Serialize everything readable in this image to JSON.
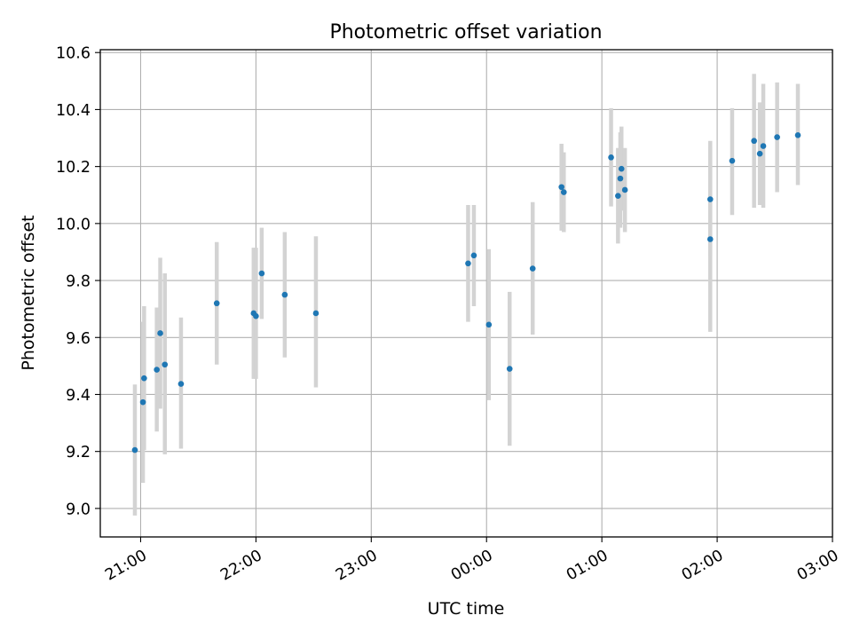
{
  "chart_data": {
    "type": "scatter",
    "title": "Photometric offset variation",
    "xlabel": "UTC time",
    "ylabel": "Photometric offset",
    "grid": true,
    "legend": "none",
    "x_unit": "hours after 21:00 UTC",
    "xlim": [
      -0.35,
      6.0
    ],
    "ylim": [
      8.9,
      10.61
    ],
    "xticks": [
      0,
      1,
      2,
      3,
      4,
      5,
      6
    ],
    "xtick_labels": [
      "21:00",
      "22:00",
      "23:00",
      "00:00",
      "01:00",
      "02:00",
      "03:00"
    ],
    "yticks": [
      9.0,
      9.2,
      9.4,
      9.6,
      9.8,
      10.0,
      10.2,
      10.4,
      10.6
    ],
    "ytick_labels": [
      "9.0",
      "9.2",
      "9.4",
      "9.6",
      "9.8",
      "10.0",
      "10.2",
      "10.4",
      "10.6"
    ],
    "marker_color": "#1f77b4",
    "errorbar_color": "#d3d3d3",
    "series": [
      {
        "points": [
          {
            "x": -0.05,
            "y": 9.205,
            "yerr_low": 8.975,
            "yerr_high": 9.435
          },
          {
            "x": 0.02,
            "y": 9.373,
            "yerr_low": 9.09,
            "yerr_high": 9.655
          },
          {
            "x": 0.03,
            "y": 9.457,
            "yerr_low": 9.205,
            "yerr_high": 9.71
          },
          {
            "x": 0.14,
            "y": 9.487,
            "yerr_low": 9.27,
            "yerr_high": 9.705
          },
          {
            "x": 0.17,
            "y": 9.615,
            "yerr_low": 9.35,
            "yerr_high": 9.88
          },
          {
            "x": 0.21,
            "y": 9.505,
            "yerr_low": 9.19,
            "yerr_high": 9.825
          },
          {
            "x": 0.35,
            "y": 9.437,
            "yerr_low": 9.21,
            "yerr_high": 9.67
          },
          {
            "x": 0.66,
            "y": 9.72,
            "yerr_low": 9.505,
            "yerr_high": 9.935
          },
          {
            "x": 0.98,
            "y": 9.685,
            "yerr_low": 9.455,
            "yerr_high": 9.915
          },
          {
            "x": 1.0,
            "y": 9.675,
            "yerr_low": 9.455,
            "yerr_high": 9.915
          },
          {
            "x": 1.05,
            "y": 9.825,
            "yerr_low": 9.665,
            "yerr_high": 9.985
          },
          {
            "x": 1.25,
            "y": 9.75,
            "yerr_low": 9.53,
            "yerr_high": 9.97
          },
          {
            "x": 1.52,
            "y": 9.685,
            "yerr_low": 9.425,
            "yerr_high": 9.955
          },
          {
            "x": 2.84,
            "y": 9.86,
            "yerr_low": 9.655,
            "yerr_high": 10.065
          },
          {
            "x": 2.89,
            "y": 9.888,
            "yerr_low": 9.71,
            "yerr_high": 10.065
          },
          {
            "x": 3.02,
            "y": 9.645,
            "yerr_low": 9.38,
            "yerr_high": 9.91
          },
          {
            "x": 3.2,
            "y": 9.49,
            "yerr_low": 9.22,
            "yerr_high": 9.76
          },
          {
            "x": 3.4,
            "y": 9.842,
            "yerr_low": 9.61,
            "yerr_high": 10.075
          },
          {
            "x": 3.65,
            "y": 10.128,
            "yerr_low": 9.975,
            "yerr_high": 10.28
          },
          {
            "x": 3.67,
            "y": 10.11,
            "yerr_low": 9.97,
            "yerr_high": 10.25
          },
          {
            "x": 4.08,
            "y": 10.232,
            "yerr_low": 10.06,
            "yerr_high": 10.405
          },
          {
            "x": 4.14,
            "y": 10.097,
            "yerr_low": 9.93,
            "yerr_high": 10.265
          },
          {
            "x": 4.16,
            "y": 10.158,
            "yerr_low": 9.985,
            "yerr_high": 10.32
          },
          {
            "x": 4.17,
            "y": 10.192,
            "yerr_low": 10.045,
            "yerr_high": 10.34
          },
          {
            "x": 4.2,
            "y": 10.118,
            "yerr_low": 9.97,
            "yerr_high": 10.265
          },
          {
            "x": 4.94,
            "y": 10.085,
            "yerr_low": 9.885,
            "yerr_high": 10.29
          },
          {
            "x": 4.94,
            "y": 9.945,
            "yerr_low": 9.62,
            "yerr_high": 10.27
          },
          {
            "x": 5.13,
            "y": 10.22,
            "yerr_low": 10.03,
            "yerr_high": 10.405
          },
          {
            "x": 5.32,
            "y": 10.29,
            "yerr_low": 10.055,
            "yerr_high": 10.525
          },
          {
            "x": 5.37,
            "y": 10.245,
            "yerr_low": 10.065,
            "yerr_high": 10.425
          },
          {
            "x": 5.4,
            "y": 10.272,
            "yerr_low": 10.055,
            "yerr_high": 10.49
          },
          {
            "x": 5.52,
            "y": 10.303,
            "yerr_low": 10.11,
            "yerr_high": 10.495
          },
          {
            "x": 5.7,
            "y": 10.31,
            "yerr_low": 10.135,
            "yerr_high": 10.49
          }
        ]
      }
    ]
  }
}
